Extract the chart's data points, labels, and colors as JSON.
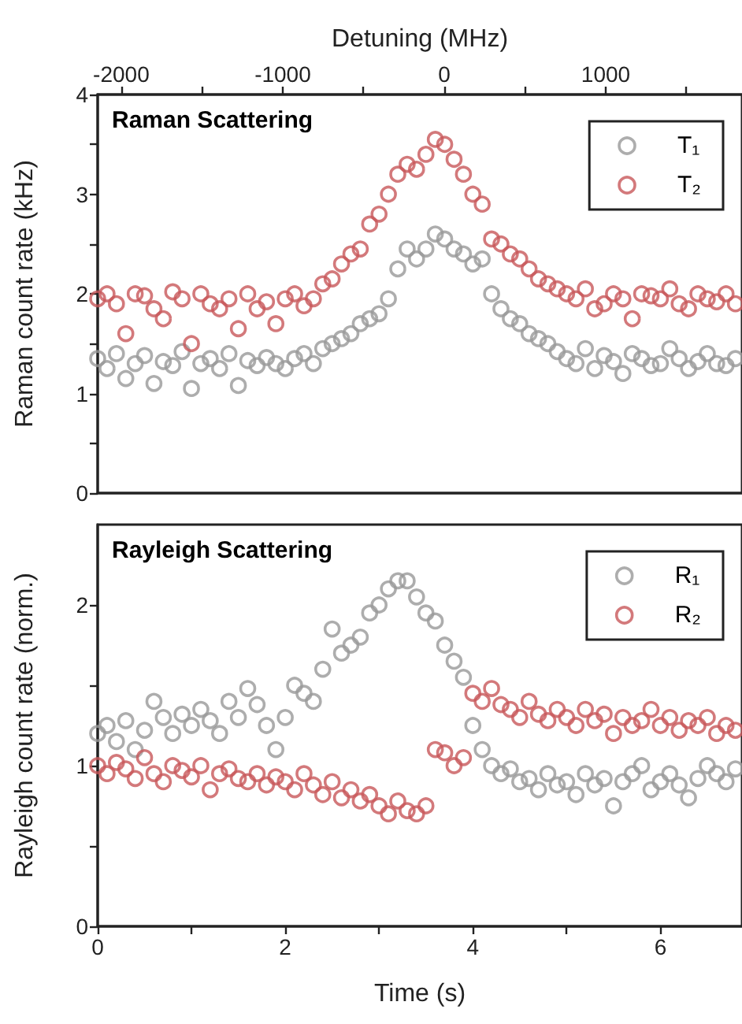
{
  "chart_data": [
    {
      "type": "scatter",
      "title": "Raman Scattering",
      "ylabel": "Raman count rate (kHz)",
      "x2label": "Detuning (MHz)",
      "legend": "top right",
      "marker": "circle",
      "tick_labels": "y",
      "xlim": [
        0,
        6.87
      ],
      "ylim": [
        0,
        4
      ],
      "yticks": [
        0,
        {
          "value": 0.5,
          "label": null
        },
        1,
        {
          "value": 1.5,
          "label": null
        },
        2,
        {
          "value": 2.5,
          "label": null
        },
        3,
        {
          "value": 3.5,
          "label": null
        },
        4
      ],
      "x2lim": [
        -2146,
        1844
      ],
      "x2ticks": [
        -2000,
        {
          "value": -1500,
          "label": null
        },
        -1000,
        {
          "value": -500,
          "label": null
        },
        0,
        {
          "value": 500,
          "label": null
        },
        1000,
        {
          "value": 1500,
          "label": null
        }
      ],
      "x": [
        0,
        0.1,
        0.2,
        0.3,
        0.4,
        0.5,
        0.6,
        0.7,
        0.8,
        0.9,
        1,
        1.1,
        1.2,
        1.3,
        1.4,
        1.5,
        1.6,
        1.7,
        1.8,
        1.9,
        2,
        2.1,
        2.2,
        2.3,
        2.4,
        2.5,
        2.6,
        2.7,
        2.8,
        2.9,
        3,
        3.1,
        3.2,
        3.3,
        3.4,
        3.5,
        3.6,
        3.7,
        3.8,
        3.9,
        4,
        4.1,
        4.2,
        4.3,
        4.4,
        4.5,
        4.6,
        4.7,
        4.8,
        4.9,
        5,
        5.1,
        5.2,
        5.3,
        5.4,
        5.5,
        5.6,
        5.7,
        5.8,
        5.9,
        6,
        6.1,
        6.2,
        6.3,
        6.4,
        6.5,
        6.6,
        6.7,
        6.8
      ],
      "series": [
        {
          "name": "T₁",
          "color": "#999999",
          "values": [
            1.35,
            1.25,
            1.4,
            1.15,
            1.3,
            1.38,
            1.1,
            1.32,
            1.28,
            1.42,
            1.05,
            1.3,
            1.35,
            1.25,
            1.4,
            1.08,
            1.33,
            1.28,
            1.36,
            1.3,
            1.25,
            1.35,
            1.4,
            1.3,
            1.45,
            1.5,
            1.55,
            1.6,
            1.7,
            1.75,
            1.8,
            1.95,
            2.25,
            2.45,
            2.35,
            2.45,
            2.6,
            2.55,
            2.45,
            2.4,
            2.3,
            2.35,
            2.0,
            1.85,
            1.75,
            1.7,
            1.6,
            1.55,
            1.5,
            1.42,
            1.35,
            1.3,
            1.45,
            1.25,
            1.38,
            1.32,
            1.2,
            1.4,
            1.35,
            1.28,
            1.3,
            1.45,
            1.35,
            1.25,
            1.32,
            1.4,
            1.3,
            1.28,
            1.35
          ]
        },
        {
          "name": "T₂",
          "color": "#c8585a",
          "values": [
            1.95,
            2.0,
            1.9,
            1.6,
            2.0,
            1.98,
            1.85,
            1.75,
            2.02,
            1.95,
            1.5,
            2.0,
            1.9,
            1.85,
            1.95,
            1.65,
            2.0,
            1.85,
            1.92,
            1.7,
            1.95,
            2.0,
            1.88,
            1.95,
            2.1,
            2.15,
            2.3,
            2.4,
            2.45,
            2.7,
            2.8,
            3.0,
            3.2,
            3.3,
            3.25,
            3.4,
            3.55,
            3.5,
            3.35,
            3.2,
            3.0,
            2.9,
            2.55,
            2.5,
            2.4,
            2.35,
            2.25,
            2.15,
            2.1,
            2.05,
            2.0,
            1.95,
            2.05,
            1.85,
            1.9,
            2.0,
            1.95,
            1.75,
            2.0,
            1.98,
            1.95,
            2.05,
            1.9,
            1.85,
            2.0,
            1.95,
            1.92,
            2.0,
            1.9
          ]
        }
      ]
    },
    {
      "type": "scatter",
      "title": "Rayleigh Scattering",
      "xlabel": "Time (s)",
      "ylabel": "Rayleigh count rate (norm.)",
      "legend": "top right",
      "marker": "circle",
      "xlim": [
        0,
        6.87
      ],
      "xticks": [
        0,
        {
          "value": 1,
          "label": null
        },
        2,
        {
          "value": 3,
          "label": null
        },
        4,
        {
          "value": 5,
          "label": null
        },
        6
      ],
      "ylim": [
        0,
        2.5
      ],
      "yticks": [
        0,
        {
          "value": 0.5,
          "label": null
        },
        1,
        {
          "value": 1.5,
          "label": null
        },
        2
      ],
      "x": [
        0,
        0.1,
        0.2,
        0.3,
        0.4,
        0.5,
        0.6,
        0.7,
        0.8,
        0.9,
        1,
        1.1,
        1.2,
        1.3,
        1.4,
        1.5,
        1.6,
        1.7,
        1.8,
        1.9,
        2,
        2.1,
        2.2,
        2.3,
        2.4,
        2.5,
        2.6,
        2.7,
        2.8,
        2.9,
        3,
        3.1,
        3.2,
        3.3,
        3.4,
        3.5,
        3.6,
        3.7,
        3.8,
        3.9,
        4,
        4.1,
        4.2,
        4.3,
        4.4,
        4.5,
        4.6,
        4.7,
        4.8,
        4.9,
        5,
        5.1,
        5.2,
        5.3,
        5.4,
        5.5,
        5.6,
        5.7,
        5.8,
        5.9,
        6,
        6.1,
        6.2,
        6.3,
        6.4,
        6.5,
        6.6,
        6.7,
        6.8
      ],
      "series": [
        {
          "name": "R₁",
          "color": "#999999",
          "values": [
            1.2,
            1.25,
            1.15,
            1.28,
            1.1,
            1.22,
            1.4,
            1.3,
            1.2,
            1.32,
            1.25,
            1.35,
            1.28,
            1.2,
            1.4,
            1.3,
            1.48,
            1.38,
            1.25,
            1.1,
            1.3,
            1.5,
            1.45,
            1.4,
            1.6,
            1.85,
            1.7,
            1.75,
            1.8,
            1.95,
            2.0,
            2.1,
            2.15,
            2.15,
            2.05,
            1.95,
            1.9,
            1.75,
            1.65,
            1.55,
            1.25,
            1.1,
            1.0,
            0.95,
            0.98,
            0.9,
            0.92,
            0.85,
            0.95,
            0.88,
            0.9,
            0.82,
            0.95,
            0.88,
            0.92,
            0.75,
            0.9,
            0.95,
            1.0,
            0.85,
            0.9,
            0.95,
            0.88,
            0.8,
            0.92,
            1.0,
            0.95,
            0.9,
            0.98
          ]
        },
        {
          "name": "R₂",
          "color": "#c8585a",
          "values": [
            1.0,
            0.95,
            1.02,
            0.98,
            0.92,
            1.05,
            0.95,
            0.9,
            1.0,
            0.97,
            0.93,
            1.0,
            0.85,
            0.95,
            0.98,
            0.92,
            0.9,
            0.95,
            0.88,
            0.93,
            0.9,
            0.85,
            0.95,
            0.88,
            0.82,
            0.9,
            0.8,
            0.85,
            0.78,
            0.82,
            0.75,
            0.7,
            0.78,
            0.72,
            0.7,
            0.75,
            1.1,
            1.08,
            1.0,
            1.05,
            1.45,
            1.4,
            1.48,
            1.38,
            1.35,
            1.3,
            1.4,
            1.32,
            1.28,
            1.35,
            1.3,
            1.25,
            1.35,
            1.28,
            1.32,
            1.2,
            1.3,
            1.25,
            1.28,
            1.35,
            1.25,
            1.3,
            1.22,
            1.28,
            1.25,
            1.3,
            1.2,
            1.25,
            1.22
          ]
        }
      ]
    }
  ]
}
